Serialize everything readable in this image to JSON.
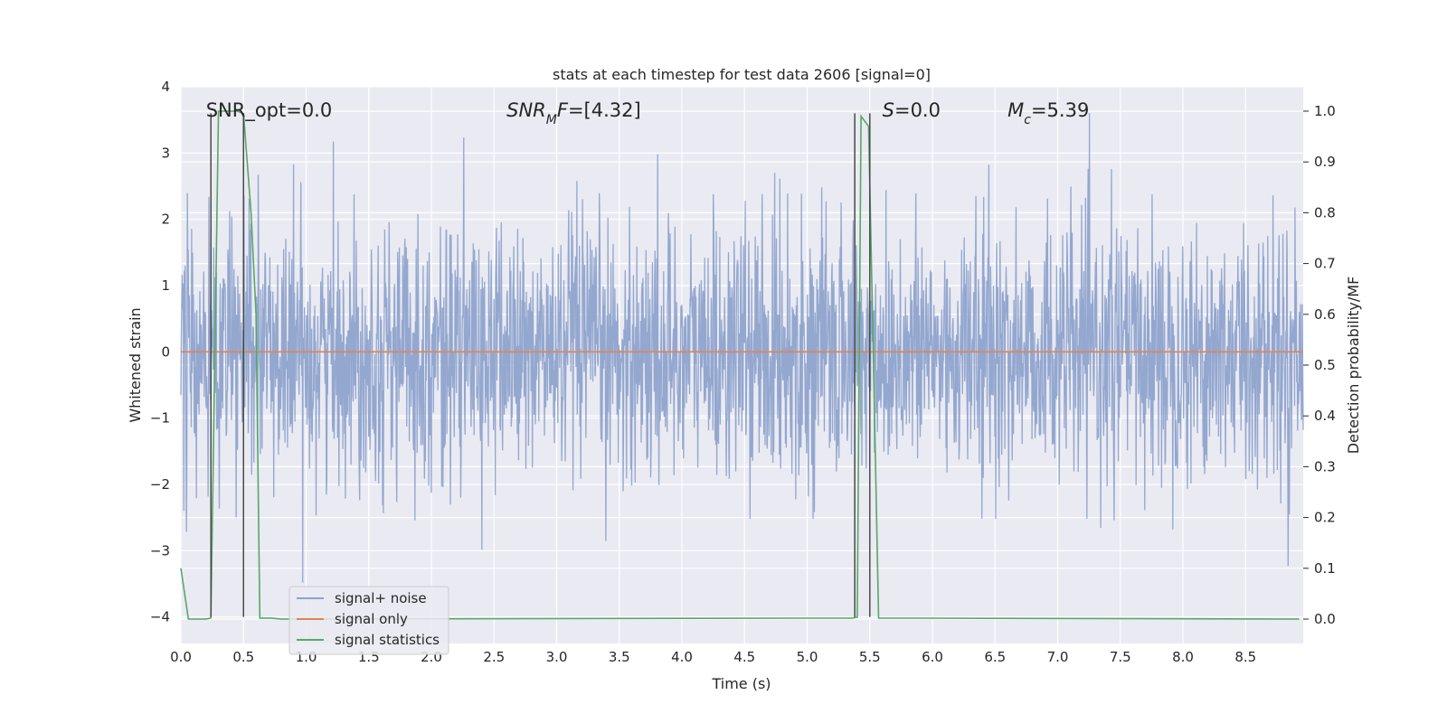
{
  "chart_data": {
    "type": "line",
    "title": "stats at each timestep for test data 2606 [signal=0]",
    "xlabel": "Time (s)",
    "ylabel": "Whitened strain",
    "ylabel_right": "Detection probability/MF",
    "xlim": [
      0,
      8.96
    ],
    "ylim": [
      -4.4,
      4
    ],
    "ylim_right": [
      -0.048,
      1.048
    ],
    "xticks": [
      "0.0",
      "0.5",
      "1.0",
      "1.5",
      "2.0",
      "2.5",
      "3.0",
      "3.5",
      "4.0",
      "4.5",
      "5.0",
      "5.5",
      "6.0",
      "6.5",
      "7.0",
      "7.5",
      "8.0",
      "8.5"
    ],
    "yticks": [
      "4",
      "3",
      "2",
      "1",
      "0",
      "−1",
      "−2",
      "−3",
      "−4"
    ],
    "yticks_right": [
      "1.0",
      "0.9",
      "0.8",
      "0.7",
      "0.6",
      "0.5",
      "0.4",
      "0.3",
      "0.2",
      "0.1",
      "0.0"
    ],
    "grid": true,
    "legend_position": "lower-left",
    "annotations": [
      {
        "name": "snr-opt",
        "text": "SNR_opt=0.0",
        "x": 0.2,
        "y": 3.55
      },
      {
        "name": "snr-mf",
        "text": "SNR_MF=[4.32]",
        "parts": [
          {
            "t": "SNR",
            "i": true
          },
          {
            "t": "M",
            "i": true,
            "sub": true
          },
          {
            "t": "F",
            "i": true
          },
          {
            "t": "=[4.32]",
            "i": false
          }
        ],
        "x": 2.6,
        "y": 3.55
      },
      {
        "name": "s-value",
        "text": "S=0.0",
        "parts": [
          {
            "t": "S",
            "i": true
          },
          {
            "t": "=0.0",
            "i": false
          }
        ],
        "x": 5.6,
        "y": 3.55
      },
      {
        "name": "mc-value",
        "text": "Mc=5.39",
        "parts": [
          {
            "t": "M",
            "i": true
          },
          {
            "t": "c",
            "i": true,
            "sub": true
          },
          {
            "t": "=5.39",
            "i": false
          }
        ],
        "x": 6.6,
        "y": 3.55
      }
    ],
    "series": [
      {
        "name": "signal+ noise",
        "color": "#8ea3cc",
        "kind": "noise",
        "x_range": [
          0,
          8.96
        ],
        "y_band": [
          -4.0,
          3.6
        ],
        "note_values": "dense whitened noise, amplitude mostly within -2.3..2.5"
      },
      {
        "name": "signal only",
        "color": "#dd8452",
        "x": [
          0,
          8.96
        ],
        "y": [
          0,
          0
        ]
      },
      {
        "name": "signal statistics",
        "color": "#55a868",
        "axis": "right",
        "x": [
          0.0,
          0.06,
          0.13,
          0.2,
          0.24,
          0.27,
          0.3,
          0.45,
          0.5,
          0.56,
          0.6,
          0.63,
          0.72,
          0.8,
          5.36,
          5.4,
          5.43,
          5.49,
          5.53,
          5.57,
          8.93
        ],
        "y": [
          0.1,
          0.0,
          0.0,
          0.0,
          0.002,
          0.5,
          1.0,
          1.0,
          0.995,
          0.8,
          0.6,
          0.002,
          0.002,
          0.0,
          0.002,
          0.004,
          0.99,
          0.97,
          0.5,
          0.002,
          0.0
        ]
      }
    ],
    "vlines": [
      {
        "x": 0.24,
        "y_range": [
          -4.0,
          3.6
        ],
        "color": "#4a4a4a"
      },
      {
        "x": 0.5,
        "y_range": [
          -4.0,
          3.6
        ],
        "color": "#4a4a4a"
      },
      {
        "x": 5.38,
        "y_range": [
          -4.0,
          3.6
        ],
        "color": "#4a4a4a"
      },
      {
        "x": 5.5,
        "y_range": [
          -4.0,
          3.6
        ],
        "color": "#4a4a4a"
      }
    ],
    "legend": [
      "signal+ noise",
      "signal only",
      "signal statistics"
    ]
  }
}
